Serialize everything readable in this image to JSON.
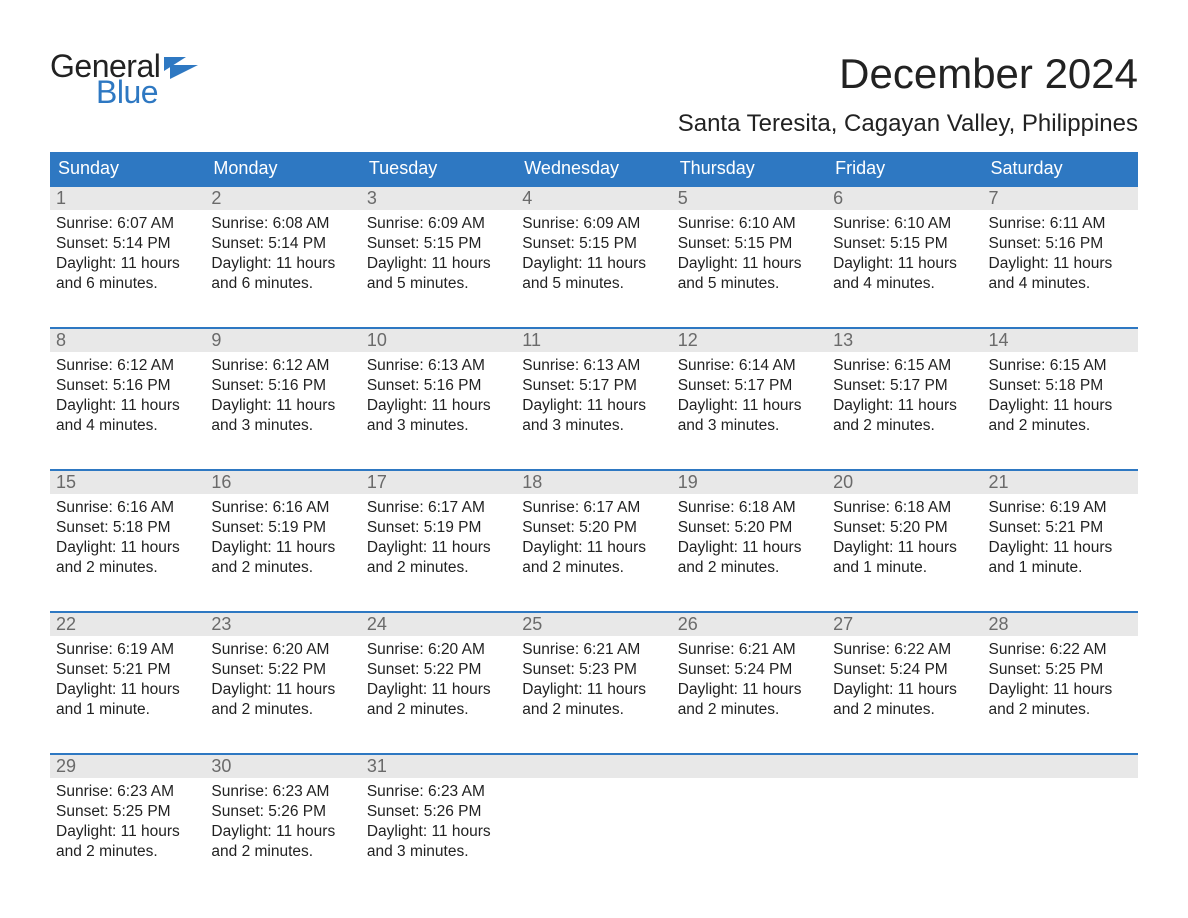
{
  "logo": {
    "general": "General",
    "blue": "Blue",
    "flag_color": "#2e78c2"
  },
  "title": "December 2024",
  "location": "Santa Teresita, Cagayan Valley, Philippines",
  "header_bg": "#2e78c2",
  "header_text_color": "#ffffff",
  "daynum_bg": "#e8e8e8",
  "daynum_color": "#6a6a6a",
  "body_text_color": "#222222",
  "weekdays": [
    "Sunday",
    "Monday",
    "Tuesday",
    "Wednesday",
    "Thursday",
    "Friday",
    "Saturday"
  ],
  "weeks": [
    [
      {
        "n": "1",
        "lines": [
          "Sunrise: 6:07 AM",
          "Sunset: 5:14 PM",
          "Daylight: 11 hours",
          "and 6 minutes."
        ]
      },
      {
        "n": "2",
        "lines": [
          "Sunrise: 6:08 AM",
          "Sunset: 5:14 PM",
          "Daylight: 11 hours",
          "and 6 minutes."
        ]
      },
      {
        "n": "3",
        "lines": [
          "Sunrise: 6:09 AM",
          "Sunset: 5:15 PM",
          "Daylight: 11 hours",
          "and 5 minutes."
        ]
      },
      {
        "n": "4",
        "lines": [
          "Sunrise: 6:09 AM",
          "Sunset: 5:15 PM",
          "Daylight: 11 hours",
          "and 5 minutes."
        ]
      },
      {
        "n": "5",
        "lines": [
          "Sunrise: 6:10 AM",
          "Sunset: 5:15 PM",
          "Daylight: 11 hours",
          "and 5 minutes."
        ]
      },
      {
        "n": "6",
        "lines": [
          "Sunrise: 6:10 AM",
          "Sunset: 5:15 PM",
          "Daylight: 11 hours",
          "and 4 minutes."
        ]
      },
      {
        "n": "7",
        "lines": [
          "Sunrise: 6:11 AM",
          "Sunset: 5:16 PM",
          "Daylight: 11 hours",
          "and 4 minutes."
        ]
      }
    ],
    [
      {
        "n": "8",
        "lines": [
          "Sunrise: 6:12 AM",
          "Sunset: 5:16 PM",
          "Daylight: 11 hours",
          "and 4 minutes."
        ]
      },
      {
        "n": "9",
        "lines": [
          "Sunrise: 6:12 AM",
          "Sunset: 5:16 PM",
          "Daylight: 11 hours",
          "and 3 minutes."
        ]
      },
      {
        "n": "10",
        "lines": [
          "Sunrise: 6:13 AM",
          "Sunset: 5:16 PM",
          "Daylight: 11 hours",
          "and 3 minutes."
        ]
      },
      {
        "n": "11",
        "lines": [
          "Sunrise: 6:13 AM",
          "Sunset: 5:17 PM",
          "Daylight: 11 hours",
          "and 3 minutes."
        ]
      },
      {
        "n": "12",
        "lines": [
          "Sunrise: 6:14 AM",
          "Sunset: 5:17 PM",
          "Daylight: 11 hours",
          "and 3 minutes."
        ]
      },
      {
        "n": "13",
        "lines": [
          "Sunrise: 6:15 AM",
          "Sunset: 5:17 PM",
          "Daylight: 11 hours",
          "and 2 minutes."
        ]
      },
      {
        "n": "14",
        "lines": [
          "Sunrise: 6:15 AM",
          "Sunset: 5:18 PM",
          "Daylight: 11 hours",
          "and 2 minutes."
        ]
      }
    ],
    [
      {
        "n": "15",
        "lines": [
          "Sunrise: 6:16 AM",
          "Sunset: 5:18 PM",
          "Daylight: 11 hours",
          "and 2 minutes."
        ]
      },
      {
        "n": "16",
        "lines": [
          "Sunrise: 6:16 AM",
          "Sunset: 5:19 PM",
          "Daylight: 11 hours",
          "and 2 minutes."
        ]
      },
      {
        "n": "17",
        "lines": [
          "Sunrise: 6:17 AM",
          "Sunset: 5:19 PM",
          "Daylight: 11 hours",
          "and 2 minutes."
        ]
      },
      {
        "n": "18",
        "lines": [
          "Sunrise: 6:17 AM",
          "Sunset: 5:20 PM",
          "Daylight: 11 hours",
          "and 2 minutes."
        ]
      },
      {
        "n": "19",
        "lines": [
          "Sunrise: 6:18 AM",
          "Sunset: 5:20 PM",
          "Daylight: 11 hours",
          "and 2 minutes."
        ]
      },
      {
        "n": "20",
        "lines": [
          "Sunrise: 6:18 AM",
          "Sunset: 5:20 PM",
          "Daylight: 11 hours",
          "and 1 minute."
        ]
      },
      {
        "n": "21",
        "lines": [
          "Sunrise: 6:19 AM",
          "Sunset: 5:21 PM",
          "Daylight: 11 hours",
          "and 1 minute."
        ]
      }
    ],
    [
      {
        "n": "22",
        "lines": [
          "Sunrise: 6:19 AM",
          "Sunset: 5:21 PM",
          "Daylight: 11 hours",
          "and 1 minute."
        ]
      },
      {
        "n": "23",
        "lines": [
          "Sunrise: 6:20 AM",
          "Sunset: 5:22 PM",
          "Daylight: 11 hours",
          "and 2 minutes."
        ]
      },
      {
        "n": "24",
        "lines": [
          "Sunrise: 6:20 AM",
          "Sunset: 5:22 PM",
          "Daylight: 11 hours",
          "and 2 minutes."
        ]
      },
      {
        "n": "25",
        "lines": [
          "Sunrise: 6:21 AM",
          "Sunset: 5:23 PM",
          "Daylight: 11 hours",
          "and 2 minutes."
        ]
      },
      {
        "n": "26",
        "lines": [
          "Sunrise: 6:21 AM",
          "Sunset: 5:24 PM",
          "Daylight: 11 hours",
          "and 2 minutes."
        ]
      },
      {
        "n": "27",
        "lines": [
          "Sunrise: 6:22 AM",
          "Sunset: 5:24 PM",
          "Daylight: 11 hours",
          "and 2 minutes."
        ]
      },
      {
        "n": "28",
        "lines": [
          "Sunrise: 6:22 AM",
          "Sunset: 5:25 PM",
          "Daylight: 11 hours",
          "and 2 minutes."
        ]
      }
    ],
    [
      {
        "n": "29",
        "lines": [
          "Sunrise: 6:23 AM",
          "Sunset: 5:25 PM",
          "Daylight: 11 hours",
          "and 2 minutes."
        ]
      },
      {
        "n": "30",
        "lines": [
          "Sunrise: 6:23 AM",
          "Sunset: 5:26 PM",
          "Daylight: 11 hours",
          "and 2 minutes."
        ]
      },
      {
        "n": "31",
        "lines": [
          "Sunrise: 6:23 AM",
          "Sunset: 5:26 PM",
          "Daylight: 11 hours",
          "and 3 minutes."
        ]
      },
      {
        "n": "",
        "lines": []
      },
      {
        "n": "",
        "lines": []
      },
      {
        "n": "",
        "lines": []
      },
      {
        "n": "",
        "lines": []
      }
    ]
  ]
}
